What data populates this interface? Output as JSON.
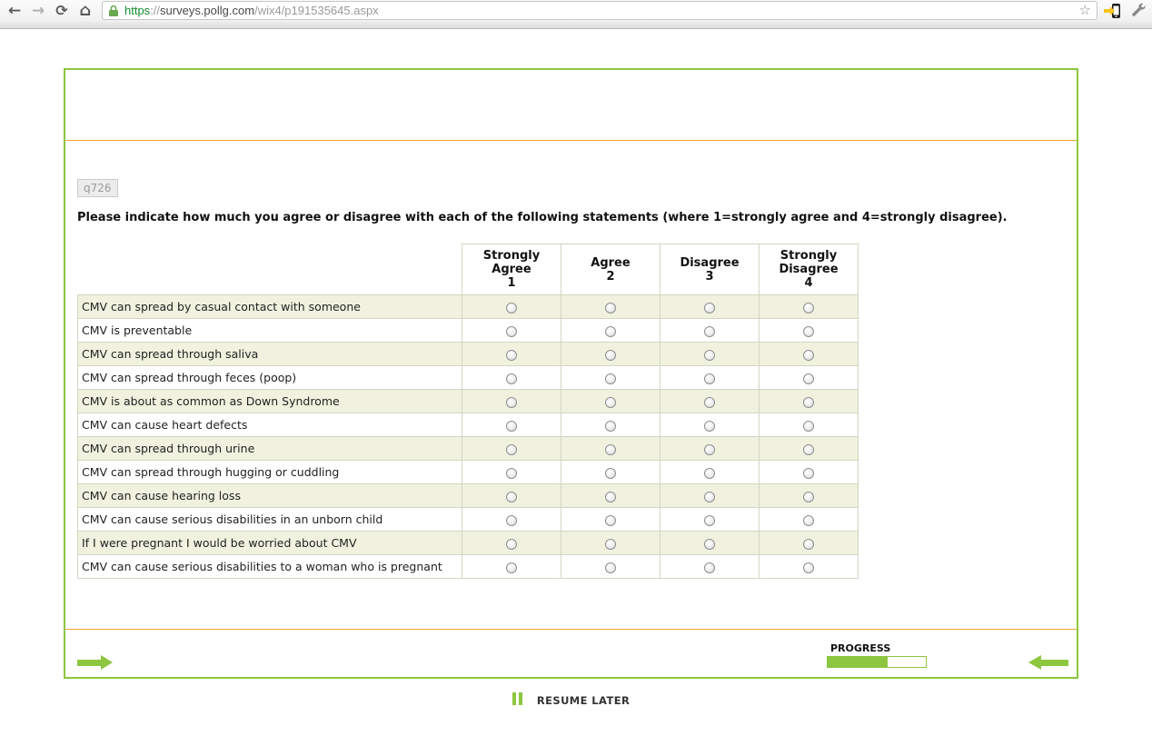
{
  "browser": {
    "url": {
      "scheme": "https",
      "separator": "://",
      "host": "surveys.pollg.com",
      "path": "/wix4/p191535645.aspx"
    },
    "icons": {
      "back": "←",
      "forward": "→",
      "reload": "⟳",
      "home": "⌂",
      "bookmark_star": "☆"
    }
  },
  "survey": {
    "question_id": "q726",
    "question_text": "Please indicate how much you agree or disagree with each of the following statements (where 1=strongly agree and 4=strongly disagree).",
    "columns": [
      {
        "label": "Strongly Agree",
        "number": "1"
      },
      {
        "label": "Agree",
        "number": "2"
      },
      {
        "label": "Disagree",
        "number": "3"
      },
      {
        "label": "Strongly Disagree",
        "number": "4"
      }
    ],
    "rows": [
      "CMV can spread by casual contact with someone",
      "CMV is preventable",
      "CMV can spread through saliva",
      "CMV can spread through feces (poop)",
      "CMV is about as common as Down Syndrome",
      "CMV can cause heart defects",
      "CMV can spread through urine",
      "CMV can spread through hugging or cuddling",
      "CMV can cause hearing loss",
      "CMV can cause serious disabilities in an unborn child",
      "If I were pregnant I would be worried about CMV",
      "CMV can cause serious disabilities to a woman who is pregnant"
    ],
    "footer": {
      "progress_label": "PROGRESS",
      "progress_percent": 61
    },
    "resume_later_label": "RESUME LATER"
  },
  "colors": {
    "accent_green": "#8dc63f",
    "accent_orange": "#f0a32e",
    "row_stripe": "#f0f2df",
    "table_border": "#d4d6c2"
  }
}
